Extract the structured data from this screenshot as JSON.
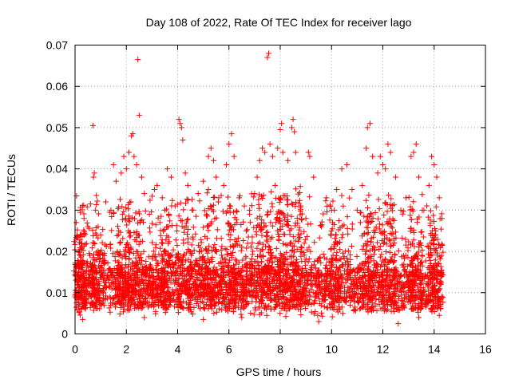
{
  "chart_data": {
    "type": "scatter",
    "title": "Day 108 of 2022, Rate Of TEC Index for receiver lago",
    "xlabel": "GPS time / hours",
    "ylabel": "ROTI / TECUs",
    "xlim": [
      0,
      16
    ],
    "ylim": [
      0,
      0.07
    ],
    "xticks": [
      "0",
      "2",
      "4",
      "6",
      "8",
      "10",
      "12",
      "14",
      "16"
    ],
    "yticks": [
      "0",
      "0.01",
      "0.02",
      "0.03",
      "0.04",
      "0.05",
      "0.06",
      "0.07"
    ],
    "grid": true,
    "marker": "plus",
    "color": "#ff0000",
    "x_range_of_data": [
      0.0,
      14.3
    ],
    "points": [
      [
        0.05,
        0.027
      ],
      [
        0.1,
        0.014
      ],
      [
        0.2,
        0.024
      ],
      [
        0.35,
        0.028
      ],
      [
        0.5,
        0.026
      ],
      [
        0.7,
        0.0505
      ],
      [
        0.72,
        0.038
      ],
      [
        0.75,
        0.039
      ],
      [
        0.8,
        0.03
      ],
      [
        0.9,
        0.026
      ],
      [
        1.0,
        0.024
      ],
      [
        1.2,
        0.032
      ],
      [
        1.4,
        0.03
      ],
      [
        1.5,
        0.041
      ],
      [
        1.6,
        0.037
      ],
      [
        1.7,
        0.025
      ],
      [
        1.8,
        0.039
      ],
      [
        1.9,
        0.043
      ],
      [
        2.0,
        0.04
      ],
      [
        2.1,
        0.044
      ],
      [
        2.2,
        0.048
      ],
      [
        2.25,
        0.0485
      ],
      [
        2.3,
        0.043
      ],
      [
        2.4,
        0.041
      ],
      [
        2.45,
        0.0665
      ],
      [
        2.5,
        0.053
      ],
      [
        2.6,
        0.038
      ],
      [
        2.7,
        0.034
      ],
      [
        2.9,
        0.029
      ],
      [
        3.1,
        0.035
      ],
      [
        3.2,
        0.036
      ],
      [
        3.4,
        0.033
      ],
      [
        3.5,
        0.03
      ],
      [
        3.6,
        0.04
      ],
      [
        3.75,
        0.038
      ],
      [
        3.9,
        0.031
      ],
      [
        4.05,
        0.052
      ],
      [
        4.1,
        0.051
      ],
      [
        4.15,
        0.05
      ],
      [
        4.2,
        0.047
      ],
      [
        4.3,
        0.039
      ],
      [
        4.4,
        0.036
      ],
      [
        4.6,
        0.03
      ],
      [
        4.8,
        0.034
      ],
      [
        5.0,
        0.037
      ],
      [
        5.2,
        0.043
      ],
      [
        5.3,
        0.045
      ],
      [
        5.4,
        0.042
      ],
      [
        5.5,
        0.038
      ],
      [
        5.6,
        0.033
      ],
      [
        5.8,
        0.036
      ],
      [
        5.9,
        0.041
      ],
      [
        6.0,
        0.046
      ],
      [
        6.1,
        0.0485
      ],
      [
        6.2,
        0.043
      ],
      [
        6.4,
        0.033
      ],
      [
        6.6,
        0.031
      ],
      [
        6.8,
        0.03
      ],
      [
        7.0,
        0.034
      ],
      [
        7.1,
        0.038
      ],
      [
        7.2,
        0.042
      ],
      [
        7.3,
        0.045
      ],
      [
        7.4,
        0.044
      ],
      [
        7.5,
        0.067
      ],
      [
        7.55,
        0.068
      ],
      [
        7.6,
        0.046
      ],
      [
        7.7,
        0.043
      ],
      [
        7.8,
        0.036
      ],
      [
        7.9,
        0.045
      ],
      [
        8.0,
        0.0495
      ],
      [
        8.05,
        0.051
      ],
      [
        8.1,
        0.044
      ],
      [
        8.3,
        0.042
      ],
      [
        8.45,
        0.05
      ],
      [
        8.5,
        0.052
      ],
      [
        8.55,
        0.049
      ],
      [
        8.6,
        0.044
      ],
      [
        8.8,
        0.031
      ],
      [
        9.0,
        0.028
      ],
      [
        9.1,
        0.044
      ],
      [
        9.15,
        0.043
      ],
      [
        9.3,
        0.038
      ],
      [
        9.6,
        0.026
      ],
      [
        9.8,
        0.033
      ],
      [
        10.0,
        0.03
      ],
      [
        10.2,
        0.035
      ],
      [
        10.4,
        0.04
      ],
      [
        10.6,
        0.041
      ],
      [
        10.8,
        0.035
      ],
      [
        11.0,
        0.03
      ],
      [
        11.2,
        0.036
      ],
      [
        11.35,
        0.045
      ],
      [
        11.4,
        0.05
      ],
      [
        11.5,
        0.051
      ],
      [
        11.6,
        0.043
      ],
      [
        11.8,
        0.039
      ],
      [
        11.9,
        0.043
      ],
      [
        12.0,
        0.041
      ],
      [
        12.1,
        0.04
      ],
      [
        12.2,
        0.046
      ],
      [
        12.3,
        0.044
      ],
      [
        12.5,
        0.038
      ],
      [
        12.7,
        0.03
      ],
      [
        12.9,
        0.033
      ],
      [
        13.1,
        0.043
      ],
      [
        13.2,
        0.044
      ],
      [
        13.3,
        0.046
      ],
      [
        13.4,
        0.038
      ],
      [
        13.6,
        0.03
      ],
      [
        13.8,
        0.036
      ],
      [
        13.9,
        0.043
      ],
      [
        14.0,
        0.041
      ],
      [
        14.1,
        0.038
      ],
      [
        14.2,
        0.033
      ],
      [
        14.3,
        0.028
      ],
      [
        0.3,
        0.0035
      ],
      [
        2.7,
        0.004
      ],
      [
        5.0,
        0.0035
      ],
      [
        6.5,
        0.004
      ],
      [
        9.5,
        0.003
      ],
      [
        12.6,
        0.0025
      ],
      [
        13.4,
        0.004
      ],
      [
        14.2,
        0.0045
      ]
    ],
    "dense_band": {
      "x_range": [
        0.0,
        14.3
      ],
      "y_range": [
        0.004,
        0.024
      ],
      "bursts": [
        [
          0.2,
          0.025
        ],
        [
          0.9,
          0.026
        ],
        [
          1.9,
          0.033
        ],
        [
          2.4,
          0.03
        ],
        [
          3.5,
          0.03
        ],
        [
          4.2,
          0.033
        ],
        [
          5.3,
          0.035
        ],
        [
          6.1,
          0.033
        ],
        [
          7.4,
          0.035
        ],
        [
          8.1,
          0.034
        ],
        [
          8.6,
          0.036
        ],
        [
          10.2,
          0.027
        ],
        [
          11.5,
          0.029
        ],
        [
          12.2,
          0.032
        ],
        [
          13.3,
          0.03
        ],
        [
          14.1,
          0.027
        ]
      ]
    }
  }
}
